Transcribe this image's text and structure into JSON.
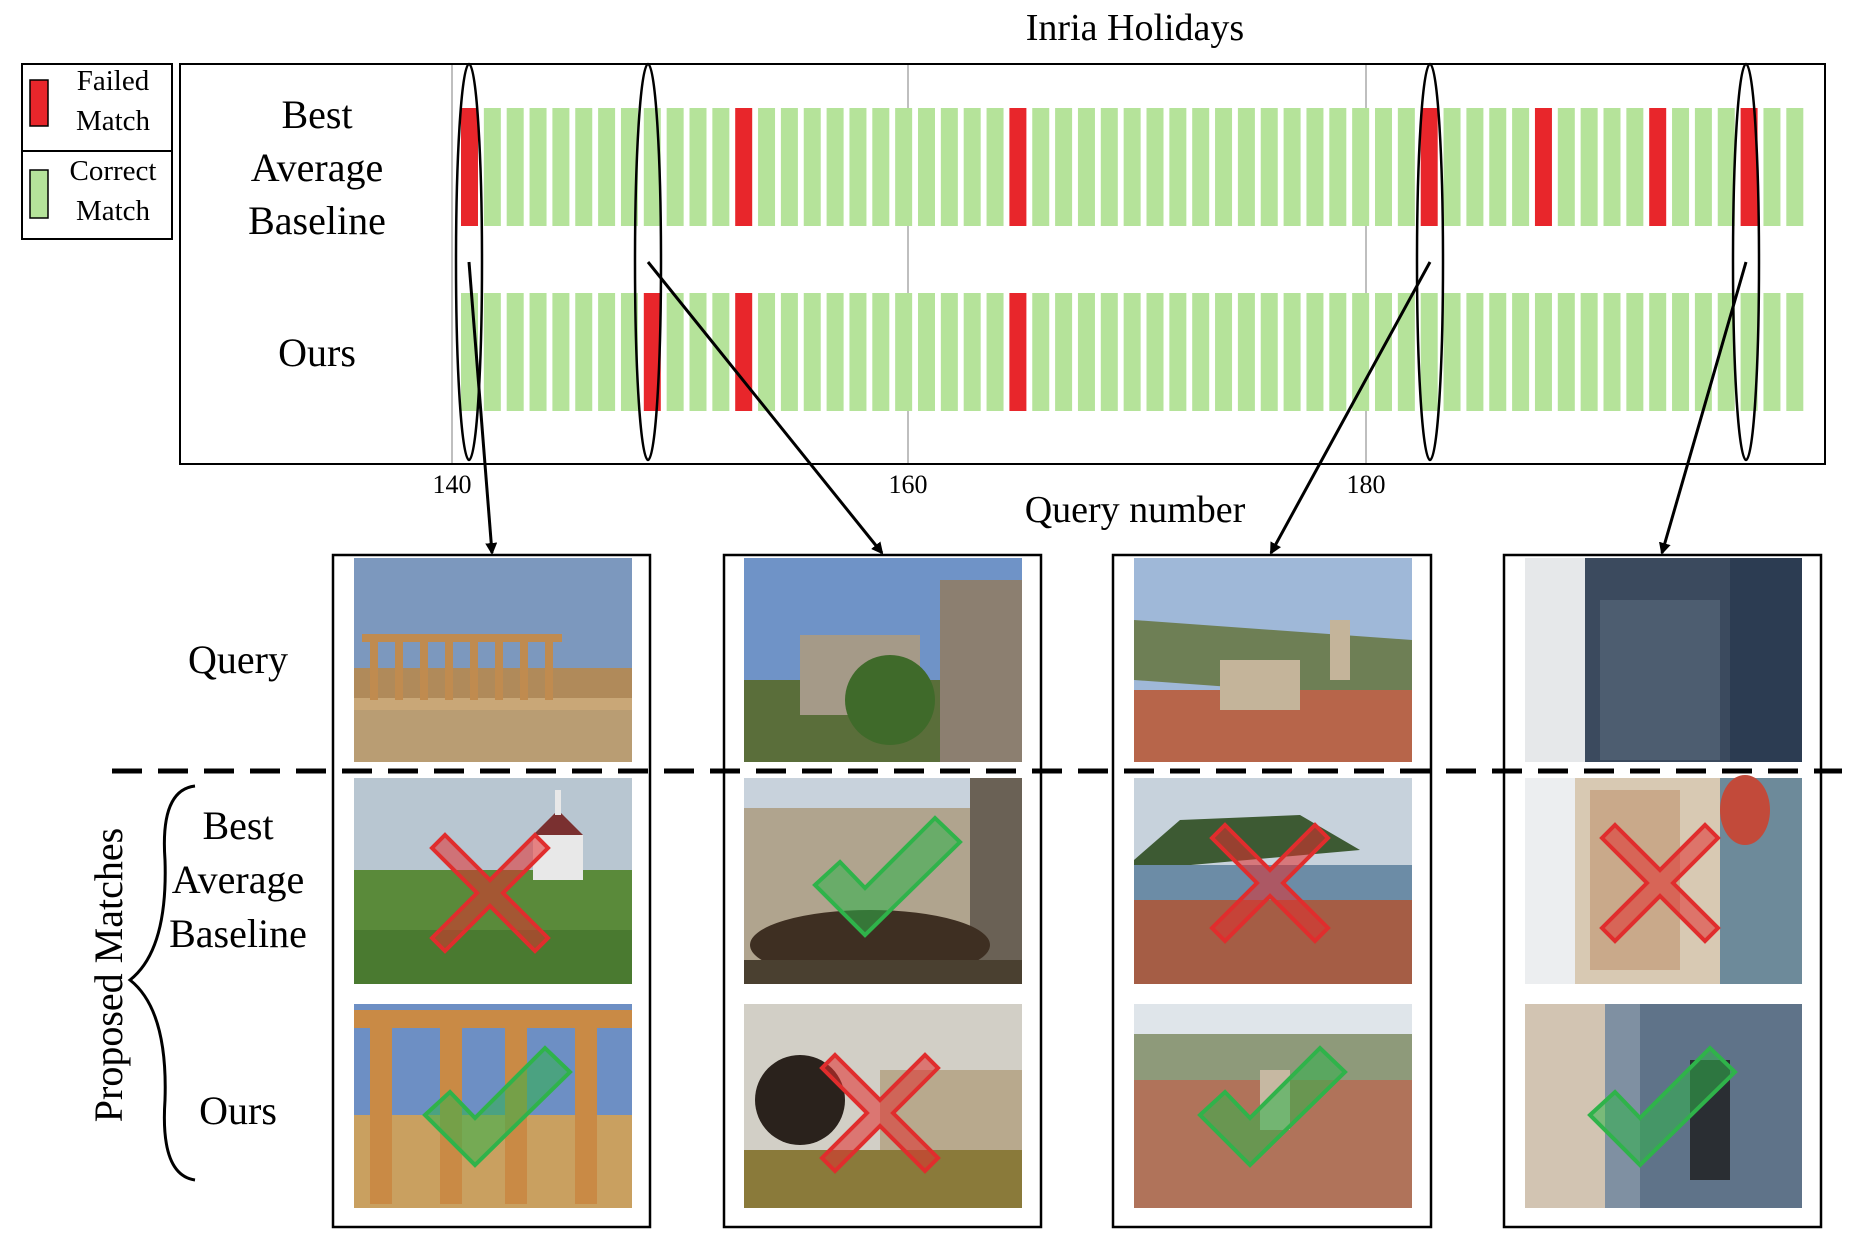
{
  "chart_data": {
    "type": "heatmap",
    "title": "Inria Holidays",
    "xlabel": "Query number",
    "ylabel": "",
    "x_ticks": [
      140,
      160,
      180
    ],
    "x_range": [
      141,
      200
    ],
    "grid": "vertical at ticks",
    "legend": {
      "placement": "top-left outside",
      "entries": [
        "Failed\nMatch",
        "Correct\nMatch"
      ]
    },
    "colors": {
      "failed": "#e8262b",
      "correct": "#b5e39a"
    },
    "series": [
      {
        "name": "Best\nAverage\nBaseline",
        "failed_queries": [
          141,
          153,
          165,
          183,
          188,
          193,
          197
        ]
      },
      {
        "name": "Ours",
        "failed_queries": [
          149,
          153,
          165
        ]
      }
    ],
    "highlighted_queries": [
      141,
      149,
      183,
      197
    ]
  },
  "legend": {
    "failed_line1": "Failed",
    "failed_line2": "Match",
    "correct_line1": "Correct",
    "correct_line2": "Match"
  },
  "rows": {
    "baseline_line1": "Best",
    "baseline_line2": "Average",
    "baseline_line3": "Baseline",
    "ours": "Ours"
  },
  "ticks": {
    "t140": "140",
    "t160": "160",
    "t180": "180"
  },
  "title": "Inria Holidays",
  "xlabel": "Query number",
  "panel_labels": {
    "query": "Query",
    "baseline_line1": "Best",
    "baseline_line2": "Average",
    "baseline_line3": "Baseline",
    "ours": "Ours",
    "proposed": "Proposed Matches"
  },
  "examples": [
    {
      "query": 141,
      "baseline_result": "incorrect",
      "ours_result": "correct"
    },
    {
      "query": 149,
      "baseline_result": "correct",
      "ours_result": "incorrect"
    },
    {
      "query": 183,
      "baseline_result": "incorrect",
      "ours_result": "correct"
    },
    {
      "query": 197,
      "baseline_result": "incorrect",
      "ours_result": "correct"
    }
  ],
  "colors": {
    "failed": "#e8262b",
    "correct": "#b5e39a",
    "check": "#2fb34a",
    "cross": "#e02d2d"
  },
  "icons": [
    "check-icon",
    "cross-icon"
  ]
}
